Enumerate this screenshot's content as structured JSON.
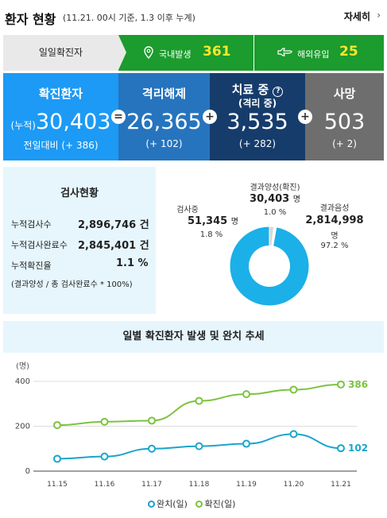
{
  "header": {
    "title": "환자 현황",
    "subtitle": "(11.21. 00시 기준, 1.3 이후 누계)",
    "more_label": "자세히",
    "more_icon": "chevron-right-icon"
  },
  "daily": {
    "label": "일일확진자",
    "domestic_label": "국내발생",
    "domestic_value": "361",
    "domestic_icon": "map-pin-icon",
    "overseas_label": "해외유입",
    "overseas_value": "25",
    "overseas_icon": "airplane-icon",
    "colors": {
      "green": "#1c9b2e",
      "yellow": "#f8e62a"
    }
  },
  "stats": {
    "confirmed": {
      "title": "확진환자",
      "prefix": "(누적)",
      "value": "30,403",
      "delta": "전일대비 (+ 386)",
      "color": "#1c9af5"
    },
    "released": {
      "title": "격리해제",
      "value": "26,365",
      "delta": "(+ 102)",
      "color": "#2674be"
    },
    "treating": {
      "title": "치료 중",
      "subtitle": "(격리 중)",
      "value": "3,535",
      "delta": "(+ 282)",
      "color": "#163c6c",
      "help_icon": "question-circle-icon"
    },
    "deaths": {
      "title": "사망",
      "value": "503",
      "delta": "(+ 2)",
      "color": "#6e6e6e"
    },
    "ops": {
      "equals": "=",
      "plus1": "+",
      "plus2": "+",
      "plus3": "+"
    }
  },
  "tests": {
    "title": "검사현황",
    "rows": [
      {
        "label": "누적검사수",
        "value": "2,896,746 건"
      },
      {
        "label": "누적검사완료수",
        "value": "2,845,401 건"
      },
      {
        "label": "누적확진율",
        "value": "1.1 %"
      }
    ],
    "note": "(결과양성 / 총 검사완료수 * 100%)",
    "pie": {
      "testing": {
        "label": "검사중",
        "value": "51,345",
        "unit": "명",
        "pct": "1.8 %"
      },
      "positive": {
        "label": "결과양성(확진)",
        "value": "30,403",
        "unit": "명",
        "pct": "1.0 %"
      },
      "negative": {
        "label": "결과음성",
        "value": "2,814,998",
        "unit": "명",
        "pct": "97.2 %"
      },
      "fractions": {
        "negative": 0.972,
        "testing": 0.018,
        "positive": 0.01
      },
      "colors": {
        "negative": "#1bb0e8",
        "testing": "#d8d8d8",
        "positive": "#ffffff"
      }
    }
  },
  "chart_data": {
    "type": "line",
    "title": "일별 확진환자 발생 및 완치 추세",
    "ylabel": "(명)",
    "categories": [
      "11.15",
      "11.16",
      "11.17",
      "11.18",
      "11.19",
      "11.20",
      "11.21"
    ],
    "yticks": [
      "0",
      "200",
      "400"
    ],
    "ylim": [
      0,
      400
    ],
    "series": [
      {
        "name": "완치(일)",
        "color": "#1aa5cc",
        "values": [
          55,
          65,
          100,
          111,
          122,
          165,
          102
        ],
        "end_label": "102"
      },
      {
        "name": "확진(일)",
        "color": "#7cc33f",
        "values": [
          205,
          220,
          225,
          313,
          343,
          363,
          386
        ],
        "end_label": "386"
      }
    ]
  }
}
